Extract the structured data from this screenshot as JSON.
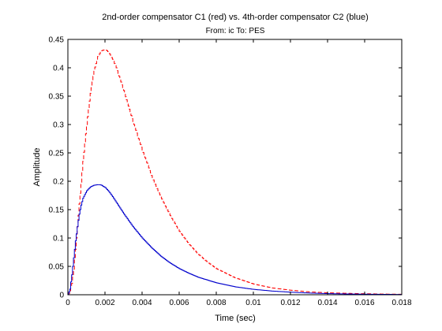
{
  "chart_data": {
    "type": "line",
    "title": "2nd-order compensator C1 (red) vs. 4th-order compensator C2 (blue)",
    "subtitle": "From: ic  To: PES",
    "xlabel": "Time (sec)",
    "ylabel": "Amplitude",
    "xlim": [
      0,
      0.018
    ],
    "ylim": [
      0,
      0.45
    ],
    "xticks": [
      0,
      0.002,
      0.004,
      0.006,
      0.008,
      0.01,
      0.012,
      0.014,
      0.016,
      0.018
    ],
    "xtick_labels": [
      "0",
      "0.002",
      "0.004",
      "0.006",
      "0.008",
      "0.01",
      "0.012",
      "0.014",
      "0.016",
      "0.018"
    ],
    "yticks": [
      0,
      0.05,
      0.1,
      0.15,
      0.2,
      0.25,
      0.3,
      0.35,
      0.4,
      0.45
    ],
    "ytick_labels": [
      "0",
      "0.05",
      "0.1",
      "0.15",
      "0.2",
      "0.25",
      "0.3",
      "0.35",
      "0.4",
      "0.45"
    ],
    "grid": false,
    "legend": "none",
    "series": [
      {
        "color": "#ff0000",
        "style": "dashed",
        "step": true,
        "x": [
          0,
          0.0001,
          0.0002,
          0.0003,
          0.0004,
          0.0005,
          0.0006,
          0.0008,
          0.001,
          0.0012,
          0.0014,
          0.0016,
          0.0018,
          0.002,
          0.0021,
          0.0022,
          0.0024,
          0.0026,
          0.0028,
          0.003,
          0.0032,
          0.0035,
          0.004,
          0.0045,
          0.005,
          0.0055,
          0.006,
          0.0065,
          0.007,
          0.0075,
          0.008,
          0.009,
          0.01,
          0.011,
          0.012,
          0.013,
          0.014,
          0.015,
          0.016,
          0.017,
          0.018
        ],
        "y": [
          0,
          0.005,
          0.02,
          0.045,
          0.08,
          0.12,
          0.16,
          0.235,
          0.3,
          0.355,
          0.395,
          0.42,
          0.43,
          0.432,
          0.43,
          0.427,
          0.415,
          0.4,
          0.38,
          0.36,
          0.338,
          0.305,
          0.255,
          0.21,
          0.172,
          0.14,
          0.112,
          0.09,
          0.072,
          0.058,
          0.046,
          0.03,
          0.019,
          0.012,
          0.008,
          0.005,
          0.0035,
          0.0025,
          0.0018,
          0.0012,
          0.0008
        ]
      },
      {
        "color": "#0000cc",
        "style": "solid",
        "step": true,
        "x": [
          0,
          0.0001,
          0.0002,
          0.0003,
          0.0004,
          0.0005,
          0.0006,
          0.0007,
          0.0008,
          0.001,
          0.0012,
          0.0014,
          0.0016,
          0.0017,
          0.0018,
          0.002,
          0.0022,
          0.0024,
          0.0026,
          0.0028,
          0.003,
          0.0035,
          0.004,
          0.0045,
          0.005,
          0.0055,
          0.006,
          0.0065,
          0.007,
          0.0075,
          0.008,
          0.009,
          0.01,
          0.011,
          0.012,
          0.013,
          0.014,
          0.015,
          0.016,
          0.017,
          0.018
        ],
        "y": [
          0,
          0.01,
          0.035,
          0.065,
          0.095,
          0.12,
          0.142,
          0.158,
          0.17,
          0.183,
          0.19,
          0.193,
          0.194,
          0.194,
          0.193,
          0.189,
          0.182,
          0.173,
          0.163,
          0.153,
          0.143,
          0.12,
          0.1,
          0.083,
          0.068,
          0.056,
          0.046,
          0.038,
          0.031,
          0.026,
          0.021,
          0.014,
          0.0095,
          0.0065,
          0.0045,
          0.003,
          0.002,
          0.0014,
          0.001,
          0.0007,
          0.0005
        ]
      }
    ]
  }
}
